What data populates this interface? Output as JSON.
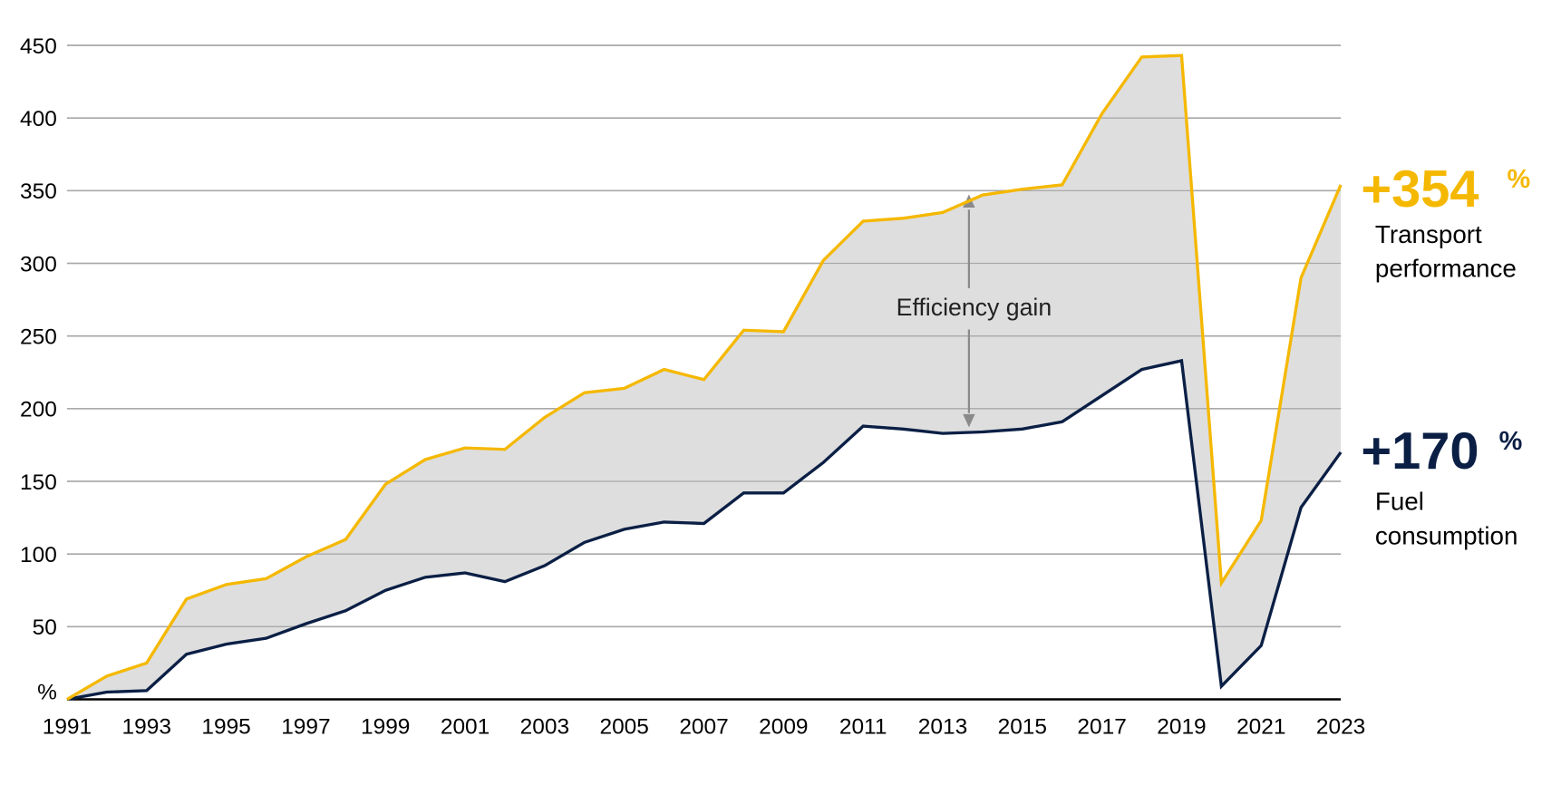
{
  "chart_data": {
    "type": "line",
    "title": "",
    "xlabel": "",
    "ylabel": "%",
    "ylim": [
      0,
      450
    ],
    "yticks": [
      50,
      100,
      150,
      200,
      250,
      300,
      350,
      400,
      450
    ],
    "y_unit_label": "%",
    "x_tick_labels": [
      "1991",
      "1993",
      "1995",
      "1997",
      "1999",
      "2001",
      "2003",
      "2005",
      "2007",
      "2009",
      "2011",
      "2013",
      "2015",
      "2017",
      "2019",
      "2021",
      "2023"
    ],
    "grid": true,
    "x": [
      1991,
      1992,
      1993,
      1994,
      1995,
      1996,
      1997,
      1998,
      1999,
      2000,
      2001,
      2002,
      2003,
      2004,
      2005,
      2006,
      2007,
      2008,
      2009,
      2010,
      2011,
      2012,
      2013,
      2014,
      2015,
      2016,
      2017,
      2018,
      2019,
      2020,
      2021,
      2022,
      2023
    ],
    "series": [
      {
        "name": "Transport performance",
        "color": "#F5B800",
        "values": [
          0,
          16,
          25,
          69,
          79,
          83,
          98,
          110,
          148,
          165,
          173,
          172,
          194,
          211,
          214,
          227,
          220,
          254,
          253,
          302,
          329,
          331,
          335,
          347,
          351,
          354,
          403,
          442,
          443,
          80,
          123,
          290,
          354
        ]
      },
      {
        "name": "Fuel consumption",
        "color": "#0B1F45",
        "values": [
          0,
          5,
          6,
          31,
          38,
          42,
          52,
          61,
          75,
          84,
          87,
          81,
          92,
          108,
          117,
          122,
          121,
          142,
          142,
          163,
          188,
          186,
          183,
          184,
          186,
          191,
          209,
          227,
          233,
          9,
          37,
          132,
          170
        ]
      }
    ],
    "shaded_area": {
      "between": [
        "Transport performance",
        "Fuel consumption"
      ],
      "color": "#DEDEDE",
      "label": "Efficiency gain"
    },
    "annotations": [
      {
        "text": "Efficiency gain",
        "type": "double-arrow",
        "x": 2014
      }
    ],
    "legend": [
      {
        "value": "+354",
        "unit": "%",
        "line1": "Transport",
        "line2": "performance",
        "color": "#F5B800"
      },
      {
        "value": "+170",
        "unit": "%",
        "line1": "Fuel",
        "line2": "consumption",
        "color": "#0B1F45"
      }
    ],
    "legend_position": "right"
  }
}
